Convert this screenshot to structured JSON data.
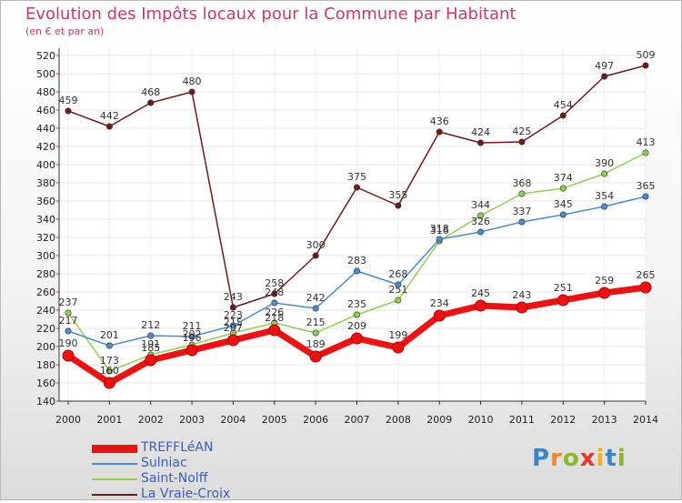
{
  "title": "Evolution des Impôts locaux pour la Commune par Habitant",
  "subtitle": "(en € et par an)",
  "logo_text": "Proxiti",
  "chart_data": {
    "type": "line",
    "x": [
      2000,
      2001,
      2002,
      2003,
      2004,
      2005,
      2006,
      2007,
      2008,
      2009,
      2010,
      2011,
      2012,
      2013,
      2014
    ],
    "ylim": [
      140,
      520
    ],
    "yticks": [
      140,
      160,
      180,
      200,
      220,
      240,
      260,
      280,
      300,
      320,
      340,
      360,
      380,
      400,
      420,
      440,
      460,
      480,
      500,
      520
    ],
    "grid": true,
    "legend_position": "bottom-left",
    "series": [
      {
        "name": "TREFFLéAN",
        "color": "#ee1111",
        "values": [
          190,
          160,
          185,
          196,
          207,
          218,
          189,
          209,
          199,
          234,
          245,
          243,
          251,
          259,
          265
        ]
      },
      {
        "name": "Sulniac",
        "color": "#4a8ccc",
        "values": [
          217,
          201,
          212,
          211,
          223,
          248,
          242,
          283,
          268,
          318,
          326,
          337,
          345,
          354,
          365
        ]
      },
      {
        "name": "Saint-Nolff",
        "color": "#8ed053",
        "values": [
          237,
          173,
          191,
          202,
          215,
          226,
          215,
          235,
          251,
          316,
          344,
          368,
          374,
          390,
          413
        ]
      },
      {
        "name": "La Vraie-Croix",
        "color": "#6e1a1a",
        "values": [
          459,
          442,
          468,
          480,
          243,
          258,
          300,
          375,
          355,
          436,
          424,
          425,
          454,
          497,
          509
        ]
      }
    ]
  }
}
